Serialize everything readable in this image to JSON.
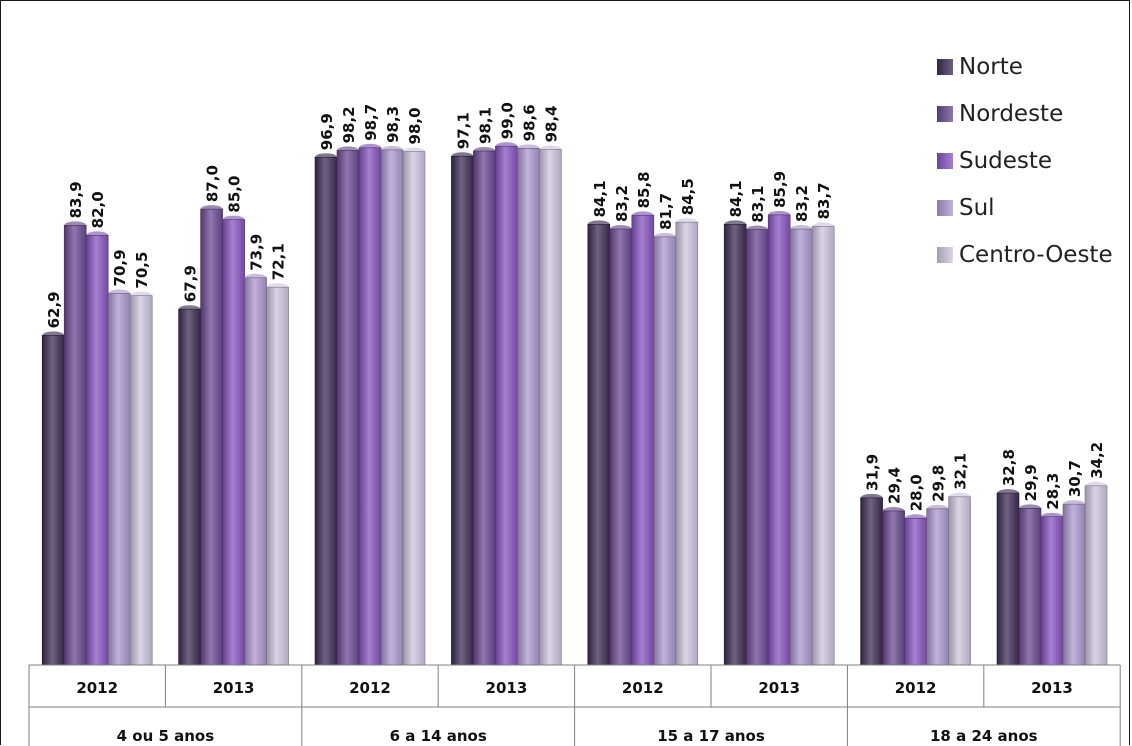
{
  "chart_data": {
    "type": "bar",
    "groups": [
      {
        "label": "4 ou 5 anos",
        "years": [
          "2012",
          "2013"
        ]
      },
      {
        "label": "6 a 14 anos",
        "years": [
          "2012",
          "2013"
        ]
      },
      {
        "label": "15 a 17 anos",
        "years": [
          "2012",
          "2013"
        ]
      },
      {
        "label": "18 a 24 anos",
        "years": [
          "2012",
          "2013"
        ]
      }
    ],
    "series": [
      {
        "name": "Norte",
        "color": "#3f2d55",
        "values": [
          62.9,
          67.9,
          96.9,
          97.1,
          84.1,
          84.1,
          31.9,
          32.8
        ],
        "labels": [
          "62,9",
          "67,9",
          "96,9",
          "97,1",
          "84,1",
          "84,1",
          "31,9",
          "32,8"
        ]
      },
      {
        "name": "Nordeste",
        "color": "#6a4a93",
        "values": [
          83.9,
          87.0,
          98.2,
          98.1,
          83.2,
          83.1,
          29.4,
          29.9
        ],
        "labels": [
          "83,9",
          "87,0",
          "98,2",
          "98,1",
          "83,2",
          "83,1",
          "29,4",
          "29,9"
        ]
      },
      {
        "name": "Sudeste",
        "color": "#8755c0",
        "values": [
          82.0,
          85.0,
          98.7,
          99.0,
          85.8,
          85.9,
          28.0,
          28.3
        ],
        "labels": [
          "82,0",
          "85,0",
          "98,7",
          "99,0",
          "85,8",
          "85,9",
          "28,0",
          "28,3"
        ]
      },
      {
        "name": "Sul",
        "color": "#ad98cf",
        "values": [
          70.9,
          73.9,
          98.3,
          98.6,
          81.7,
          83.2,
          29.8,
          30.7
        ],
        "labels": [
          "70,9",
          "73,9",
          "98,3",
          "98,6",
          "81,7",
          "83,2",
          "29,8",
          "30,7"
        ]
      },
      {
        "name": "Centro-Oeste",
        "color": "#cfc5df",
        "values": [
          70.5,
          72.1,
          98.0,
          98.4,
          84.5,
          83.7,
          32.1,
          34.2
        ],
        "labels": [
          "70,5",
          "72,1",
          "98,0",
          "98,4",
          "84,5",
          "83,7",
          "32,1",
          "34,2"
        ]
      }
    ],
    "legend_position": "top-right",
    "grid": false
  }
}
